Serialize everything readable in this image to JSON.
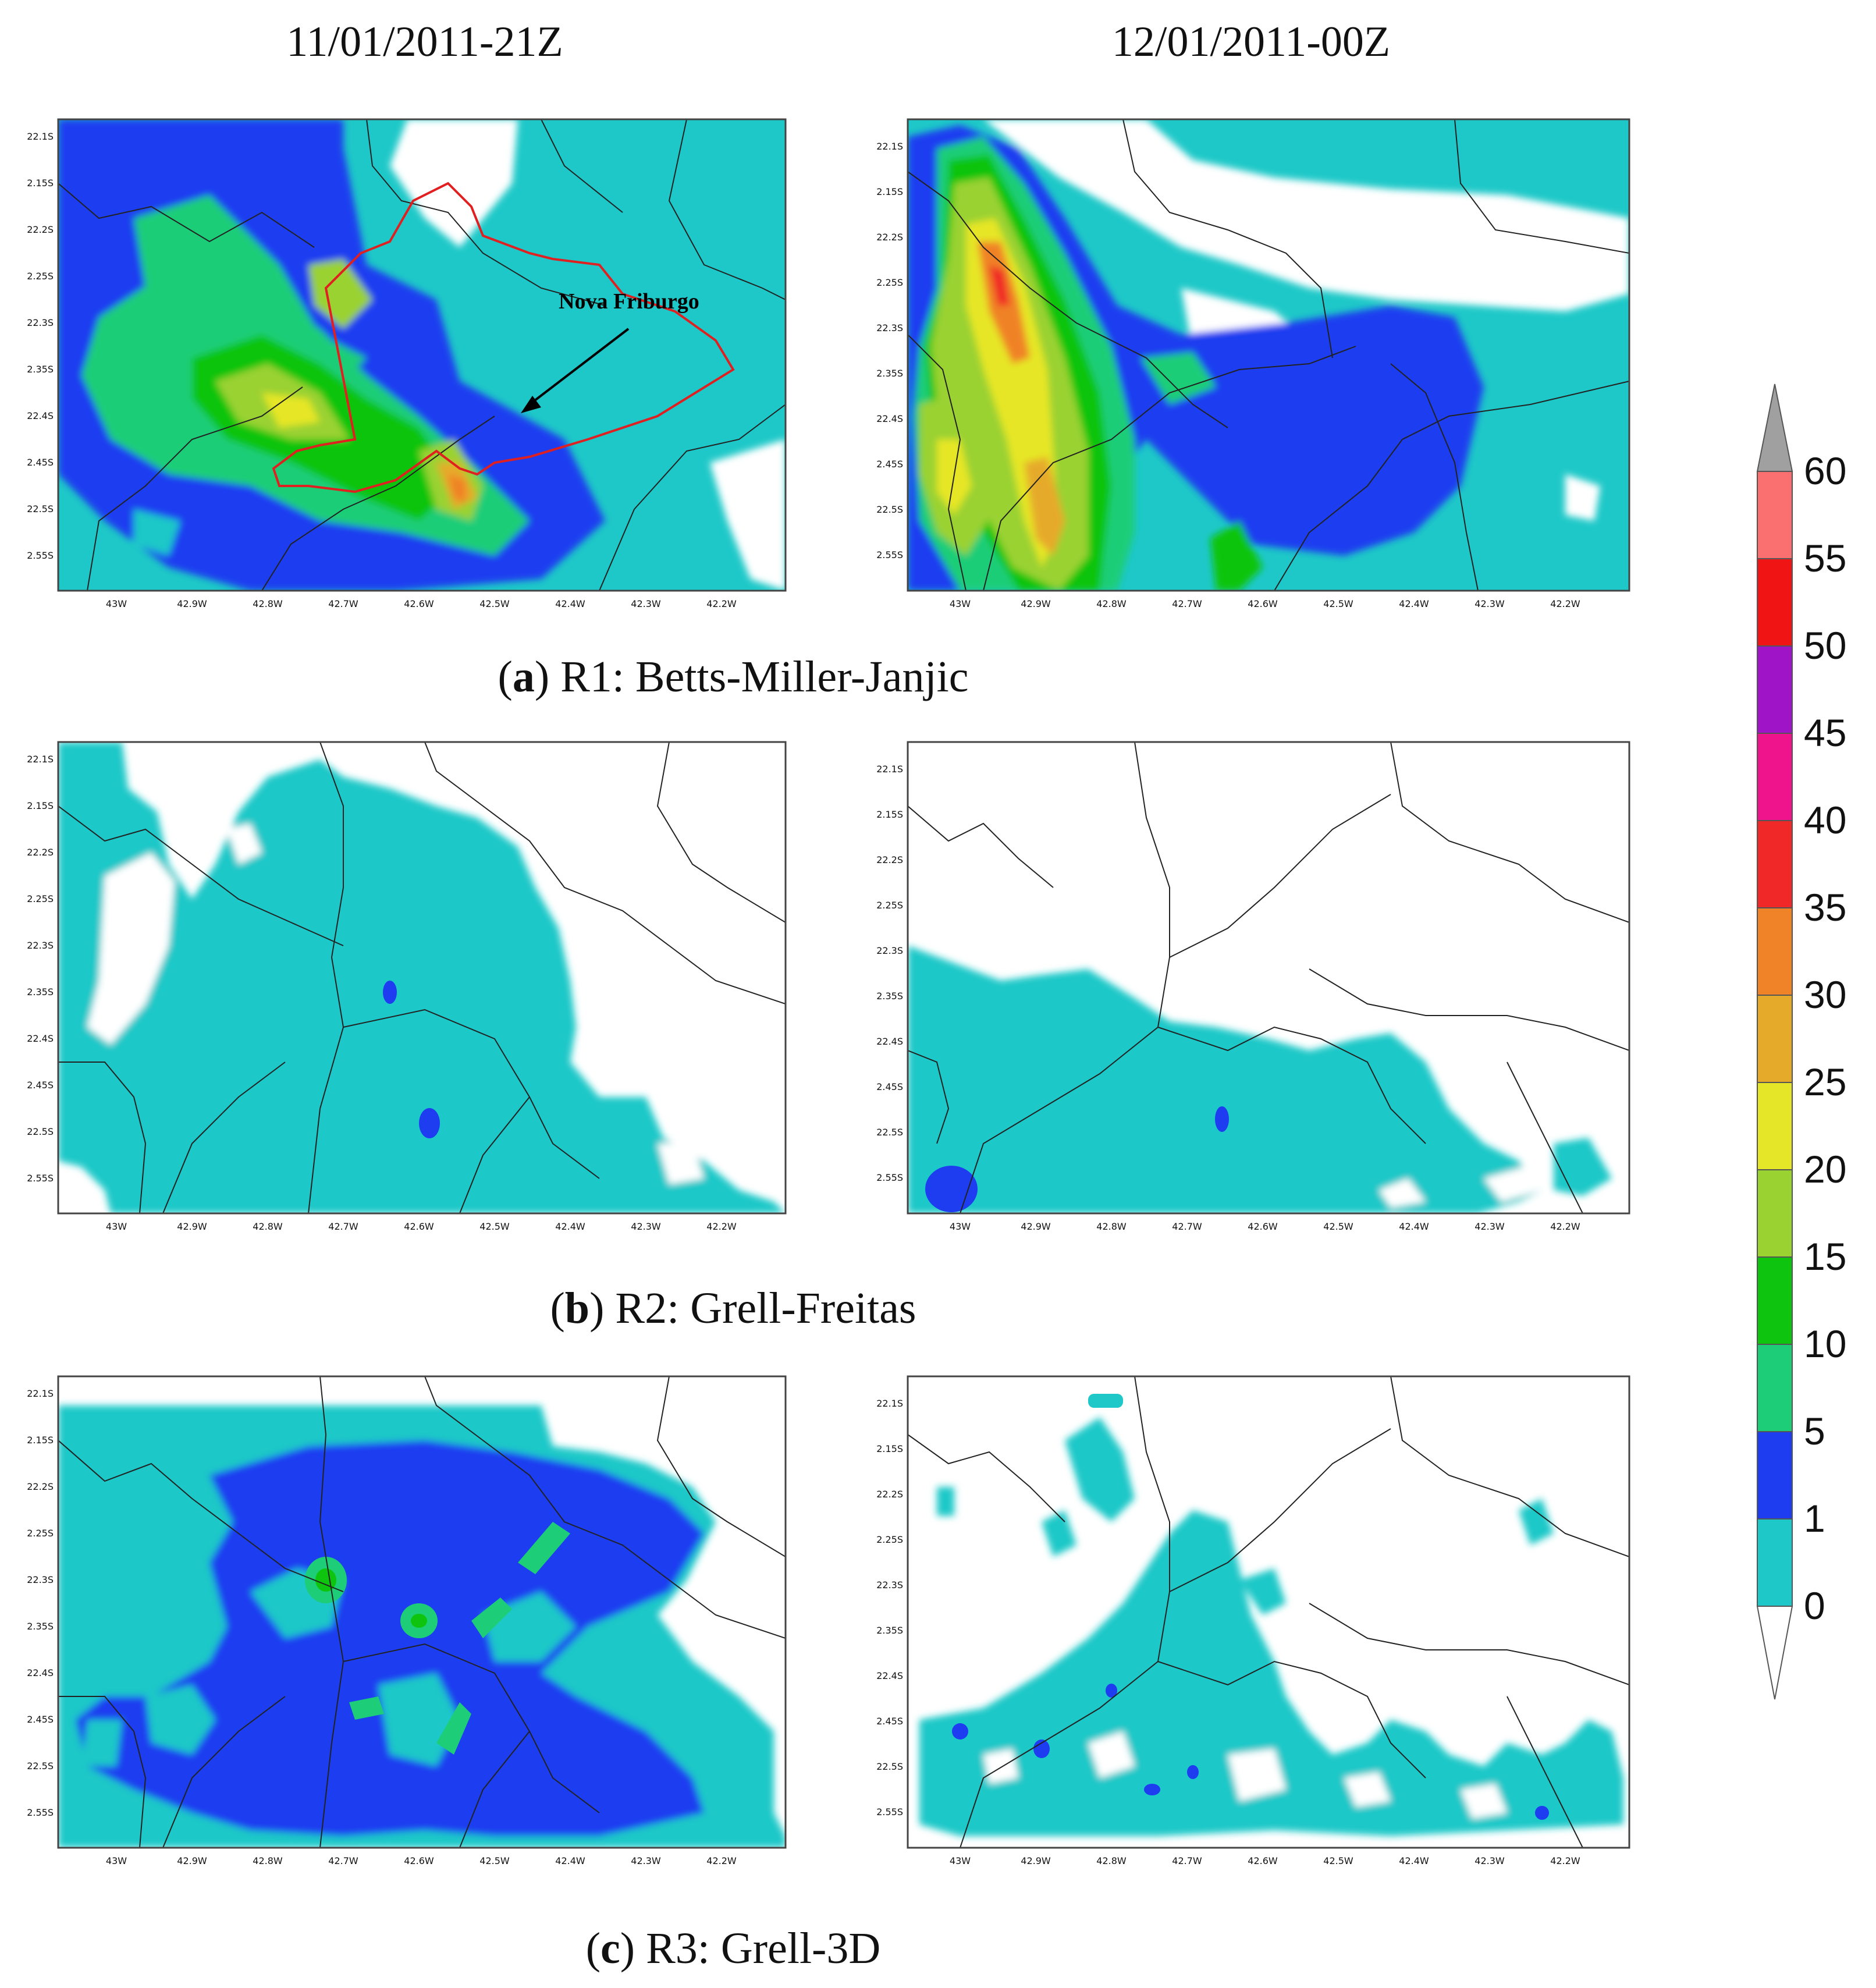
{
  "columns": [
    "11/01/2011-21Z",
    "12/01/2011-00Z"
  ],
  "rows": [
    {
      "letter": "a",
      "label": "R1: Betts-Miller-Janjic"
    },
    {
      "letter": "b",
      "label": "R2: Grell-Freitas"
    },
    {
      "letter": "c",
      "label": "R3: Grell-3D"
    }
  ],
  "annotation": "Nova Friburgo",
  "lat_ticks": [
    "22.1S",
    "2.15S",
    "22.2S",
    "2.25S",
    "22.3S",
    "2.35S",
    "22.4S",
    "2.45S",
    "22.5S",
    "2.55S"
  ],
  "lon_ticks": [
    "43W",
    "42.9W",
    "42.8W",
    "42.7W",
    "42.6W",
    "42.5W",
    "42.4W",
    "42.3W",
    "42.2W"
  ],
  "colorbar": {
    "labels": [
      "0",
      "1",
      "5",
      "10",
      "15",
      "20",
      "25",
      "30",
      "35",
      "40",
      "45",
      "50",
      "55",
      "60"
    ],
    "colors": [
      "#1ec8c8",
      "#1e3cf0",
      "#1ecd78",
      "#0ec40e",
      "#9ad232",
      "#e6e628",
      "#e6aa2a",
      "#f08228",
      "#f02828",
      "#f0148c",
      "#a014c8",
      "#f01414",
      "#fa7070"
    ],
    "under_color": "#ffffff",
    "over_color": "#a0a0a0"
  },
  "palette": {
    "c0": "#1ec8c8",
    "c1": "#1e3cf0",
    "c5": "#1ecd78",
    "c10": "#0ec40e",
    "c15": "#9ad232",
    "c20": "#e6e628",
    "c25": "#e6aa2a",
    "c30": "#f08228",
    "boundary": "#e02020"
  }
}
